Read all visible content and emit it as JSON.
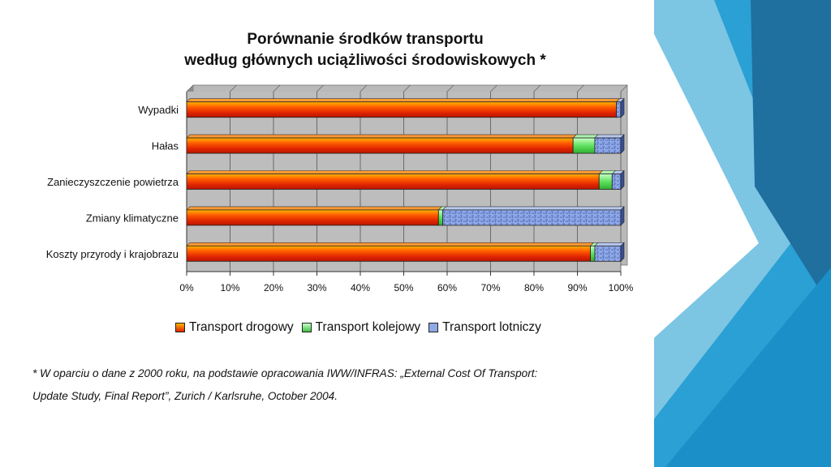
{
  "chart_data": {
    "type": "bar",
    "orientation": "horizontal",
    "stacked": "percent",
    "title": "Porównanie środków transportu\nwedług głównych uciążliwości środowiskowych *",
    "categories": [
      "Wypadki",
      "Hałas",
      "Zanieczyszczenie powietrza",
      "Zmiany klimatyczne",
      "Koszty przyrody i krajobrazu"
    ],
    "series": [
      {
        "name": "Transport drogowy",
        "values": [
          99,
          89,
          95,
          58,
          93
        ],
        "color": "#e23b00"
      },
      {
        "name": "Transport kolejowy",
        "values": [
          0,
          5,
          3,
          1,
          1
        ],
        "color": "#66e866"
      },
      {
        "name": "Transport lotniczy",
        "values": [
          1,
          6,
          2,
          41,
          6
        ],
        "color": "#8aa4e4"
      }
    ],
    "xlim": [
      0,
      100
    ],
    "xticks": [
      "0%",
      "10%",
      "20%",
      "30%",
      "40%",
      "50%",
      "60%",
      "70%",
      "80%",
      "90%",
      "100%"
    ],
    "grid": true,
    "legend_position": "bottom"
  },
  "footnote": {
    "line1": "* W oparciu o dane z 2000 roku, na podstawie opracowania IWW/INFRAS: „External Cost Of Transport:",
    "line2": "Update Study, Final Report”, Zurich / Karlsruhe, October 2004."
  },
  "theme": {
    "accent_blue": "#2aa0d4",
    "dark_blue": "#1f5f8f"
  }
}
